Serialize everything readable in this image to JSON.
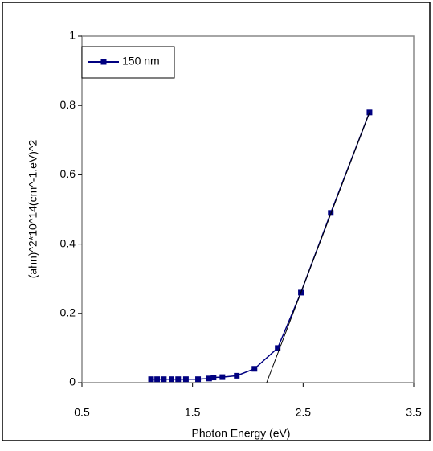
{
  "chart_data": {
    "type": "line",
    "x_label": "Photon Energy (eV)",
    "y_label": "(ahn)^2*10^14(cm^-1.eV)^2",
    "xlim": [
      0.5,
      3.5
    ],
    "xticks": [
      0.5,
      1.5,
      2.5,
      3.5
    ],
    "ylim": [
      0,
      1
    ],
    "yticks": [
      0,
      0.2,
      0.4,
      0.6,
      0.8,
      1
    ],
    "legend": "top-left",
    "series": [
      {
        "name": "150 nm",
        "color": "#000080",
        "x": [
          1.125,
          1.18,
          1.24,
          1.31,
          1.37,
          1.44,
          1.55,
          1.65,
          1.69,
          1.77,
          1.9,
          2.06,
          2.27,
          2.48,
          2.75,
          3.1
        ],
        "values": [
          0.01,
          0.01,
          0.01,
          0.01,
          0.01,
          0.01,
          0.01,
          0.012,
          0.015,
          0.016,
          0.02,
          0.04,
          0.1,
          0.26,
          0.49,
          0.78
        ]
      }
    ],
    "tangent": {
      "color": "#000000",
      "x": [
        2.17,
        3.1
      ],
      "values": [
        0,
        0.78
      ]
    }
  }
}
